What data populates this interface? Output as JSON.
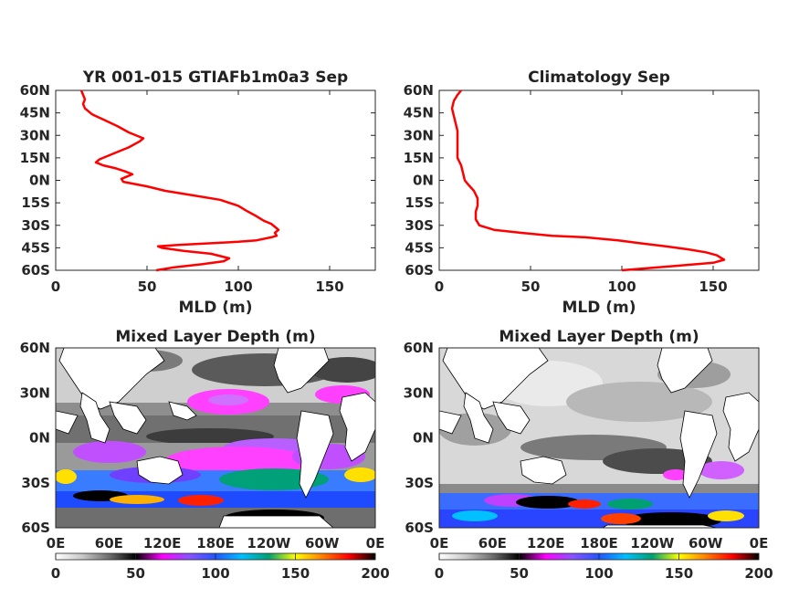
{
  "chart_data": [
    {
      "type": "line",
      "title": "YR 001-015 GTIAFb1m0a3 Sep",
      "xlabel": "MLD (m)",
      "ylabel": "",
      "xlim": [
        0,
        175
      ],
      "ylim": [
        -60,
        60
      ],
      "xticks": [
        0,
        50,
        100,
        150
      ],
      "yticks": [
        "60N",
        "45N",
        "30N",
        "15N",
        "0N",
        "15S",
        "30S",
        "45S",
        "60S"
      ],
      "series_color": "#ff0000",
      "series": [
        {
          "values_x": [
            14,
            15,
            16,
            15,
            16,
            20,
            27,
            34,
            40,
            48,
            46,
            40,
            32,
            24,
            22,
            26,
            33,
            38,
            42,
            38,
            36,
            37,
            50,
            60,
            75,
            90,
            100,
            104,
            110,
            114,
            118,
            120,
            122,
            120,
            121,
            118,
            110,
            100,
            85,
            68,
            56,
            58,
            70,
            85,
            95,
            92,
            80,
            65,
            55
          ],
          "values_y": [
            60,
            57,
            54,
            51,
            48,
            44,
            40,
            36,
            32,
            28,
            26,
            22,
            18,
            14,
            12,
            10,
            8,
            6,
            4,
            2,
            1,
            -1,
            -4,
            -7,
            -10,
            -13,
            -17,
            -20,
            -24,
            -27,
            -29,
            -31,
            -33,
            -35,
            -37,
            -38,
            -40,
            -41,
            -42,
            -43,
            -44,
            -45,
            -47,
            -49,
            -52,
            -54,
            -56,
            -58,
            -60
          ]
        }
      ]
    },
    {
      "type": "line",
      "title": "Climatology Sep",
      "xlabel": "MLD (m)",
      "ylabel": "",
      "xlim": [
        0,
        175
      ],
      "ylim": [
        -60,
        60
      ],
      "xticks": [
        0,
        50,
        100,
        150
      ],
      "yticks": [
        "60N",
        "45N",
        "30N",
        "15N",
        "0N",
        "15S",
        "30S",
        "45S",
        "60S"
      ],
      "series_color": "#ff0000",
      "series": [
        {
          "values_x": [
            12,
            10,
            8,
            7,
            8,
            9,
            10,
            10,
            10,
            10,
            12,
            13,
            14,
            16,
            19,
            21,
            21,
            20,
            20,
            22,
            30,
            45,
            62,
            80,
            98,
            110,
            124,
            136,
            146,
            152,
            156,
            150,
            130,
            110,
            100
          ],
          "values_y": [
            60,
            57,
            53,
            48,
            43,
            38,
            33,
            27,
            21,
            15,
            10,
            5,
            0,
            -3,
            -7,
            -12,
            -17,
            -21,
            -26,
            -30,
            -33,
            -35,
            -37,
            -38,
            -40,
            -42,
            -44,
            -46,
            -48,
            -50,
            -53,
            -55,
            -57,
            -59,
            -60
          ]
        }
      ]
    },
    {
      "type": "heatmap",
      "title": "Mixed Layer Depth (m)",
      "xticks": [
        "0E",
        "60E",
        "120E",
        "180E",
        "120W",
        "60W",
        "0E"
      ],
      "yticks": [
        "60N",
        "30N",
        "0N",
        "30S",
        "60S"
      ],
      "colorbar_ticks": [
        0,
        50,
        100,
        150,
        200
      ],
      "colorbar_range": [
        0,
        200
      ]
    },
    {
      "type": "heatmap",
      "title": "Mixed Layer Depth (m)",
      "xticks": [
        "0E",
        "60E",
        "120E",
        "180E",
        "120W",
        "60W",
        "0E"
      ],
      "yticks": [
        "60N",
        "30N",
        "0N",
        "30S",
        "60S"
      ],
      "colorbar_ticks": [
        0,
        50,
        100,
        150,
        200
      ],
      "colorbar_range": [
        0,
        200
      ]
    }
  ],
  "colorbar_stops": [
    "#ffffff",
    "#c8c8c8",
    "#6e6e6e",
    "#000000",
    "#ff00ff",
    "#8a52ff",
    "#2255ff",
    "#00c0ff",
    "#00a070",
    "#ffff00",
    "#ff8000",
    "#ff0000",
    "#000000"
  ],
  "map_colors": {
    "land": "#ffffff",
    "coast": "#000000"
  }
}
